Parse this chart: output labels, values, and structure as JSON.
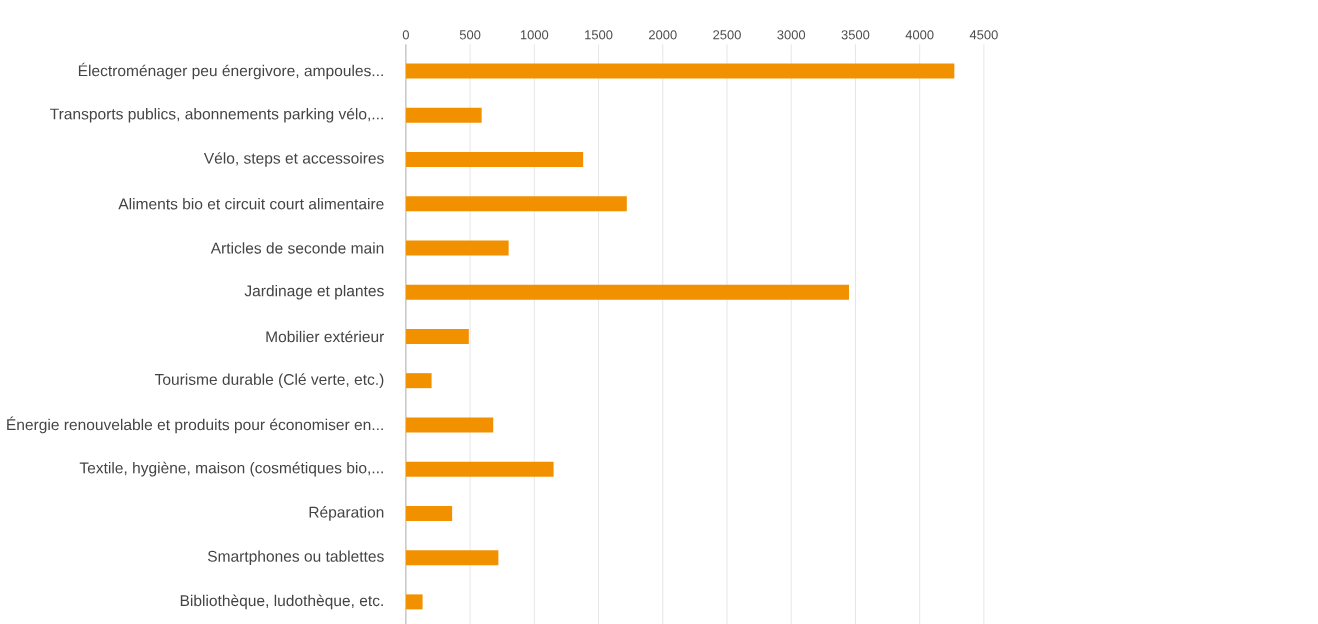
{
  "chart_data": {
    "type": "bar",
    "orientation": "horizontal",
    "categories": [
      "Électroménager peu énergivore, ampoules...",
      "Transports publics, abonnements parking vélo,...",
      "Vélo, steps et accessoires",
      "Aliments bio et circuit court alimentaire",
      "Articles de seconde main",
      "Jardinage et plantes",
      "Mobilier extérieur",
      "Tourisme durable (Clé verte, etc.)",
      "Énergie renouvelable et produits pour économiser en...",
      "Textile, hygiène, maison (cosmétiques bio,...",
      "Réparation",
      "Smartphones ou tablettes",
      "Bibliothèque, ludothèque, etc."
    ],
    "values": [
      4270,
      590,
      1380,
      1720,
      800,
      3450,
      490,
      200,
      680,
      1150,
      360,
      720,
      130
    ],
    "color": "#f29100",
    "xlim": [
      0,
      4500
    ],
    "xticks": [
      0,
      500,
      1000,
      1500,
      2000,
      2500,
      3000,
      3500,
      4000,
      4500
    ],
    "grid": "x"
  }
}
